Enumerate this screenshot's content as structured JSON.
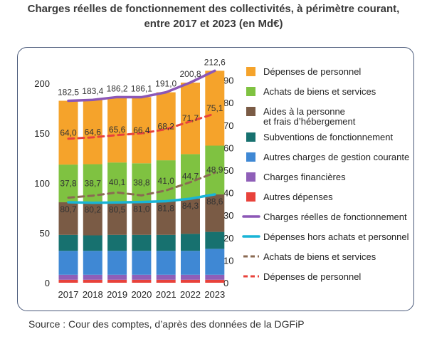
{
  "title": {
    "line1": "Charges réelles de fonctionnement des collectivités, à périmètre courant,",
    "line2": "entre 2017 et 2023 (en Md€)"
  },
  "source": "Source : Cour des comptes, d’après des données de la DGFiP",
  "chart_data": {
    "type": "bar",
    "stacked": true,
    "categories": [
      "2017",
      "2018",
      "2019",
      "2020",
      "2021",
      "2022",
      "2023"
    ],
    "left_axis": {
      "ylim": [
        0,
        215
      ],
      "ticks": [
        "0",
        "50",
        "100",
        "150",
        "200"
      ]
    },
    "right_axis": {
      "ylim": [
        0,
        95
      ],
      "ticks": [
        "0",
        "10",
        "20",
        "30",
        "40",
        "50",
        "60",
        "70",
        "80",
        "90"
      ]
    },
    "series": [
      {
        "name": "Autres dépenses",
        "type": "bar",
        "axis": "left",
        "color": "#e8423b",
        "values": [
          3,
          3,
          3,
          3,
          3,
          3,
          3
        ]
      },
      {
        "name": "Charges financières",
        "type": "bar",
        "axis": "left",
        "color": "#8f5fb8",
        "values": [
          5,
          5,
          5,
          5,
          5,
          5,
          5
        ]
      },
      {
        "name": "Autres charges de gestion courante",
        "type": "bar",
        "axis": "left",
        "color": "#3f88d4",
        "values": [
          24,
          24,
          24,
          24,
          24,
          24,
          26
        ]
      },
      {
        "name": "Subventions de fonctionnement",
        "type": "bar",
        "axis": "left",
        "color": "#17716f",
        "values": [
          16,
          15.5,
          16,
          16,
          16,
          17,
          17
        ]
      },
      {
        "name": "Aides à la personne et frais d’hébergement",
        "type": "bar",
        "axis": "left",
        "color": "#7a5b45",
        "values": [
          32.7,
          32.7,
          32.5,
          33,
          33.8,
          35.3,
          37.6
        ]
      },
      {
        "name": "Achats de biens et services",
        "type": "bar",
        "axis": "left",
        "color": "#7fc241",
        "values": [
          37.8,
          38.7,
          40.1,
          38.8,
          41,
          44.7,
          48.9
        ]
      },
      {
        "name": "Dépenses de personnel",
        "type": "bar",
        "axis": "left",
        "color": "#f5a32b",
        "values": [
          64,
          64.6,
          65.6,
          66.4,
          68.2,
          71.7,
          75.1
        ]
      },
      {
        "name": "Charges réelles de fonctionnement",
        "type": "line",
        "axis": "left",
        "color": "#8c57b6",
        "values": [
          182.5,
          183.4,
          186.2,
          186.1,
          191,
          200.8,
          212.6
        ]
      },
      {
        "name": "Dépenses hors achats et personnel",
        "type": "line",
        "axis": "left",
        "color": "#19b4d6",
        "values": [
          80.7,
          80.2,
          80.5,
          81,
          81.8,
          84.3,
          88.6
        ]
      },
      {
        "name": "Achats de biens et services",
        "type": "dashed-line",
        "axis": "right",
        "color": "#8a6a52",
        "values": [
          37.8,
          38.7,
          40.1,
          38.8,
          41,
          44.7,
          48.9
        ]
      },
      {
        "name": "Dépenses de personnel",
        "type": "dashed-line",
        "axis": "right",
        "color": "#e8423b",
        "values": [
          64,
          64.6,
          65.6,
          66.4,
          68.2,
          71.7,
          75.1
        ]
      }
    ],
    "labels": {
      "total": [
        "182,5",
        "183,4",
        "186,2",
        "186,1",
        "191,0",
        "200,8",
        "212,6"
      ],
      "personnel": [
        "64,0",
        "64,6",
        "65,6",
        "66,4",
        "68,2",
        "71,7",
        "75,1"
      ],
      "achats": [
        "37,8",
        "38,7",
        "40,1",
        "38,8",
        "41,0",
        "44,7",
        "48,9"
      ],
      "hors": [
        "80,7",
        "80,2",
        "80,5",
        "81,0",
        "81,8",
        "84,3",
        "88,6"
      ]
    },
    "legend": [
      {
        "label": "Dépenses de personnel",
        "kind": "box",
        "color": "#f5a32b"
      },
      {
        "label": "Achats de biens et services",
        "kind": "box",
        "color": "#7fc241"
      },
      {
        "label": "Aides à la personne",
        "label2": "et frais d’hébergement",
        "kind": "box",
        "color": "#7a5b45"
      },
      {
        "label": "Subventions de fonctionnement",
        "kind": "box",
        "color": "#17716f"
      },
      {
        "label": "Autres charges de gestion courante",
        "kind": "box",
        "color": "#3f88d4"
      },
      {
        "label": "Charges financières",
        "kind": "box",
        "color": "#8f5fb8"
      },
      {
        "label": "Autres dépenses",
        "kind": "box",
        "color": "#e8423b"
      },
      {
        "label": "Charges réelles de fonctionnement",
        "kind": "line",
        "color": "#8c57b6"
      },
      {
        "label": "Dépenses hors achats et personnel",
        "kind": "line",
        "color": "#19b4d6"
      },
      {
        "label": "Achats de biens et services",
        "kind": "dash",
        "color": "#8a6a52"
      },
      {
        "label": "Dépenses de personnel",
        "kind": "dash",
        "color": "#e8423b"
      }
    ],
    "legend_position": "right"
  }
}
